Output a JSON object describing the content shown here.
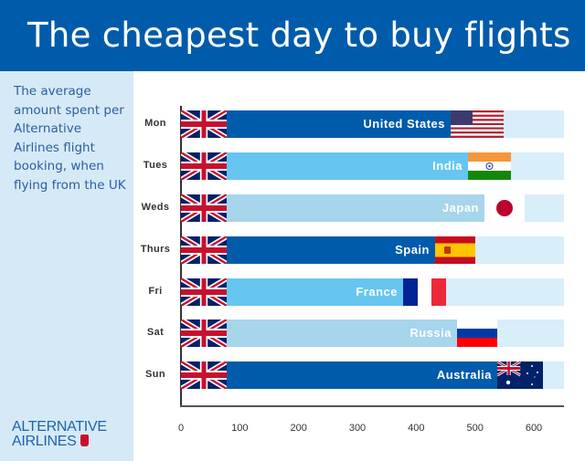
{
  "header": {
    "title": "The cheapest day to buy flights"
  },
  "sidebar": {
    "description": "The average amount spent per Alternative Airlines flight booking, when flying from the UK",
    "logo_line1": "ALTERNATIVE",
    "logo_line2": "AIRLINES"
  },
  "colors": {
    "header_bg": "#005baa",
    "sidebar_bg": "#d6e9f6",
    "bar_dark": "#005baa",
    "bar_light": "#66c6f0",
    "bar_pale": "#a6d5ec",
    "track": "#d8eef8"
  },
  "chart_data": {
    "type": "bar",
    "orientation": "horizontal",
    "title": "The cheapest day to buy flights",
    "subtitle": "The average amount spent per Alternative Airlines flight booking, when flying from the UK",
    "xlabel": "",
    "ylabel": "",
    "categories": [
      "Mon",
      "Tues",
      "Weds",
      "Thurs",
      "Fri",
      "Sat",
      "Sun"
    ],
    "destinations": [
      "United States",
      "India",
      "Japan",
      "Spain",
      "France",
      "Russia",
      "Australia"
    ],
    "values": [
      549,
      561,
      585,
      500,
      451,
      538,
      616
    ],
    "x_ticks": [
      0,
      100,
      200,
      300,
      400,
      500,
      600
    ],
    "xlim": [
      0,
      650
    ],
    "grid": false,
    "legend": "none"
  },
  "rows": [
    {
      "day": "Mon",
      "country": "United States",
      "flag": "us-flag",
      "style": "dark"
    },
    {
      "day": "Tues",
      "country": "India",
      "flag": "india-flag",
      "style": "light"
    },
    {
      "day": "Weds",
      "country": "Japan",
      "flag": "japan-flag",
      "style": "pale"
    },
    {
      "day": "Thurs",
      "country": "Spain",
      "flag": "spain-flag",
      "style": "dark"
    },
    {
      "day": "Fri",
      "country": "France",
      "flag": "france-flag",
      "style": "light"
    },
    {
      "day": "Sat",
      "country": "Russia",
      "flag": "russia-flag",
      "style": "pale"
    },
    {
      "day": "Sun",
      "country": "Australia",
      "flag": "australia-flag",
      "style": "dark"
    }
  ],
  "ticks": [
    "0",
    "100",
    "200",
    "300",
    "400",
    "500",
    "600"
  ]
}
